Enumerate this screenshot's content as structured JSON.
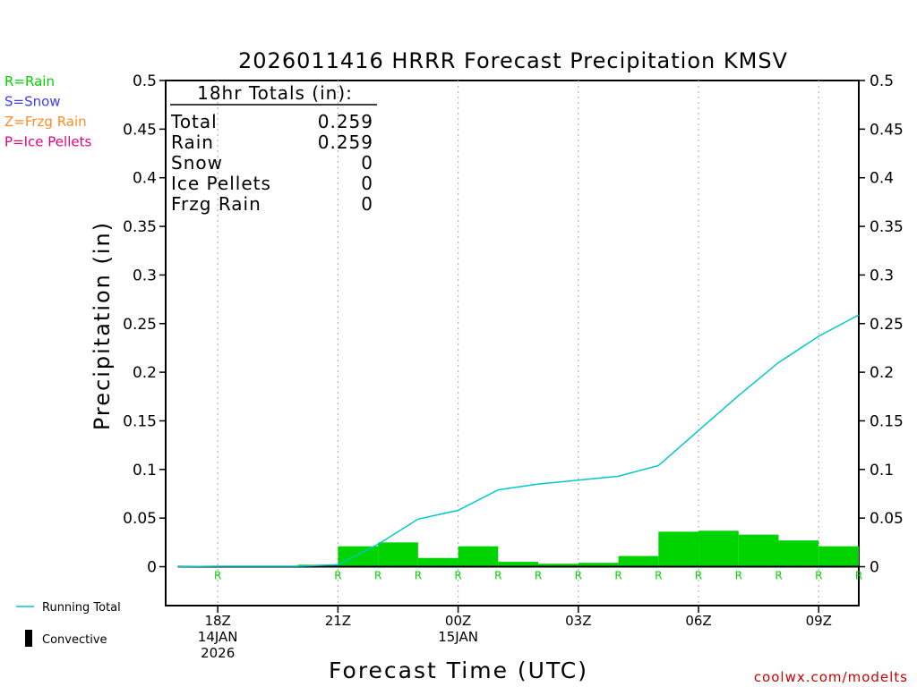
{
  "chart_data": {
    "type": "bar",
    "title": "2026011416 HRRR Forecast Precipitation KMSV",
    "xlabel": "Forecast Time (UTC)",
    "ylabel": "Precipitation (in)",
    "ylim": [
      -0.04,
      0.5
    ],
    "y_ticks": [
      0,
      0.05,
      0.1,
      0.15,
      0.2,
      0.25,
      0.3,
      0.35,
      0.4,
      0.45,
      0.5
    ],
    "y_tick_labels": [
      "0",
      "0.05",
      "0.1",
      "0.15",
      "0.2",
      "0.25",
      "0.3",
      "0.35",
      "0.4",
      "0.45",
      "0.5"
    ],
    "xlim": [
      16.7,
      34
    ],
    "x_ticks": [
      {
        "hour": 18,
        "lines": [
          "18Z",
          "14JAN",
          "2026"
        ]
      },
      {
        "hour": 21,
        "lines": [
          "21Z"
        ]
      },
      {
        "hour": 24,
        "lines": [
          "00Z",
          "15JAN"
        ]
      },
      {
        "hour": 27,
        "lines": [
          "03Z"
        ]
      },
      {
        "hour": 30,
        "lines": [
          "06Z"
        ]
      },
      {
        "hour": 33,
        "lines": [
          "09Z"
        ]
      }
    ],
    "hours": [
      17,
      18,
      19,
      20,
      21,
      22,
      23,
      24,
      25,
      26,
      27,
      28,
      29,
      30,
      31,
      32,
      33,
      34
    ],
    "series": [
      {
        "name": "Hourly Precipitation",
        "kind": "bar",
        "color": "#00d400",
        "values": [
          0,
          0,
          0,
          0,
          0.002,
          0.021,
          0.025,
          0.009,
          0.021,
          0.005,
          0.003,
          0.004,
          0.011,
          0.036,
          0.037,
          0.033,
          0.027,
          0.021
        ]
      },
      {
        "name": "Running Total",
        "kind": "line",
        "color": "#00c8c8",
        "values": [
          0,
          0.0005,
          0.0005,
          0.0005,
          0.002,
          0.023,
          0.049,
          0.058,
          0.079,
          0.085,
          0.089,
          0.093,
          0.104,
          0.14,
          0.176,
          0.21,
          0.237,
          0.259
        ]
      }
    ],
    "precip_type_markers": [
      {
        "hour": 18,
        "label": "R"
      },
      {
        "hour": 21,
        "label": "R"
      },
      {
        "hour": 22,
        "label": "R"
      },
      {
        "hour": 23,
        "label": "R"
      },
      {
        "hour": 24,
        "label": "R"
      },
      {
        "hour": 25,
        "label": "R"
      },
      {
        "hour": 26,
        "label": "R"
      },
      {
        "hour": 27,
        "label": "R"
      },
      {
        "hour": 28,
        "label": "R"
      },
      {
        "hour": 29,
        "label": "R"
      },
      {
        "hour": 30,
        "label": "R"
      },
      {
        "hour": 31,
        "label": "R"
      },
      {
        "hour": 32,
        "label": "R"
      },
      {
        "hour": 33,
        "label": "R"
      },
      {
        "hour": 34,
        "label": "R"
      }
    ],
    "totals_box": {
      "heading": "18hr Totals (in):",
      "rows": [
        {
          "label": "Total",
          "value": "0.259"
        },
        {
          "label": "Rain",
          "value": "0.259"
        },
        {
          "label": "Snow",
          "value": "0"
        },
        {
          "label": "Ice Pellets",
          "value": "0"
        },
        {
          "label": "Frzg Rain",
          "value": "0"
        }
      ]
    },
    "type_legend": [
      {
        "text": "R=Rain",
        "color": "#00d400"
      },
      {
        "text": "S=Snow",
        "color": "#3c3cff"
      },
      {
        "text": "Z=Frzg Rain",
        "color": "#ff8c28"
      },
      {
        "text": "P=Ice Pellets",
        "color": "#e6007e"
      }
    ],
    "bottom_legend": {
      "running_total": "Running Total",
      "convective": "Convective"
    },
    "credit": "coolwx.com/modelts",
    "credit_color": "#cc0000"
  }
}
